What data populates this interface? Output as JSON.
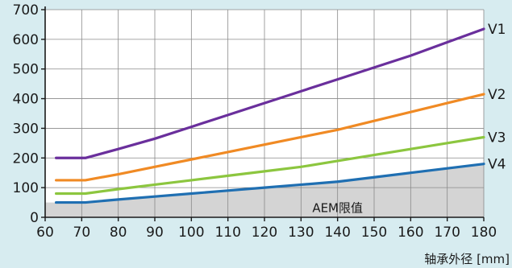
{
  "chart_data": {
    "type": "line",
    "xlabel": "轴承外径 [mm]",
    "ylabel": "",
    "xlim": [
      60,
      180
    ],
    "ylim": [
      0,
      700
    ],
    "x_ticks": [
      60,
      70,
      80,
      90,
      100,
      110,
      120,
      130,
      140,
      150,
      160,
      170,
      180
    ],
    "y_ticks": [
      0,
      100,
      200,
      300,
      400,
      500,
      600,
      700
    ],
    "grid": true,
    "legend": "inline-right",
    "series": [
      {
        "name": "V1",
        "color": "#6a2f9c",
        "points": [
          [
            63,
            200
          ],
          [
            71,
            200
          ],
          [
            80,
            230
          ],
          [
            90,
            265
          ],
          [
            100,
            305
          ],
          [
            110,
            345
          ],
          [
            120,
            385
          ],
          [
            130,
            425
          ],
          [
            140,
            465
          ],
          [
            150,
            505
          ],
          [
            160,
            545
          ],
          [
            170,
            590
          ],
          [
            180,
            635
          ]
        ]
      },
      {
        "name": "V2",
        "color": "#f08a24",
        "points": [
          [
            63,
            125
          ],
          [
            71,
            125
          ],
          [
            80,
            145
          ],
          [
            90,
            170
          ],
          [
            100,
            195
          ],
          [
            110,
            220
          ],
          [
            120,
            245
          ],
          [
            130,
            270
          ],
          [
            140,
            295
          ],
          [
            150,
            325
          ],
          [
            160,
            355
          ],
          [
            170,
            385
          ],
          [
            180,
            415
          ]
        ]
      },
      {
        "name": "V3",
        "color": "#8cc63f",
        "points": [
          [
            63,
            80
          ],
          [
            71,
            80
          ],
          [
            80,
            95
          ],
          [
            90,
            110
          ],
          [
            100,
            125
          ],
          [
            110,
            140
          ],
          [
            120,
            155
          ],
          [
            130,
            170
          ],
          [
            140,
            190
          ],
          [
            150,
            210
          ],
          [
            160,
            230
          ],
          [
            170,
            250
          ],
          [
            180,
            270
          ]
        ]
      },
      {
        "name": "V4",
        "color": "#1f6fb2",
        "points": [
          [
            63,
            50
          ],
          [
            71,
            50
          ],
          [
            80,
            60
          ],
          [
            90,
            70
          ],
          [
            100,
            80
          ],
          [
            110,
            90
          ],
          [
            120,
            100
          ],
          [
            130,
            110
          ],
          [
            140,
            120
          ],
          [
            150,
            135
          ],
          [
            160,
            150
          ],
          [
            170,
            165
          ],
          [
            180,
            180
          ]
        ]
      }
    ],
    "shaded_region": {
      "label": "AEM限值",
      "color": "#d4d4d4",
      "points": [
        [
          60,
          50
        ],
        [
          71,
          50
        ],
        [
          80,
          60
        ],
        [
          90,
          70
        ],
        [
          100,
          80
        ],
        [
          110,
          90
        ],
        [
          120,
          100
        ],
        [
          130,
          110
        ],
        [
          140,
          120
        ],
        [
          150,
          135
        ],
        [
          160,
          150
        ],
        [
          170,
          165
        ],
        [
          180,
          180
        ]
      ]
    }
  }
}
